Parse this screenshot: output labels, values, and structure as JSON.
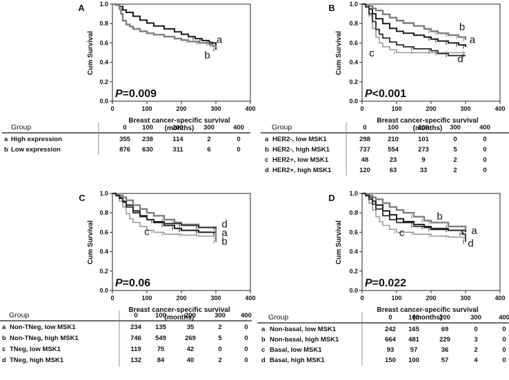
{
  "colors": {
    "a": "#1a1a1a",
    "b": "#7d7d7d",
    "c": "#9a9a9a",
    "d": "#2b2b2b",
    "axis": "#222222"
  },
  "chart_data": [
    {
      "panel": "A",
      "type": "line",
      "ylabel": "Cum Survival",
      "xlabel_line1": "Breast cancer-specific survival",
      "xlabel_line2": "(months)",
      "xlim": [
        0,
        400
      ],
      "ylim": [
        0.0,
        1.0
      ],
      "xticks": [
        "0",
        "100",
        "200",
        "300",
        "400"
      ],
      "yticks": [
        "0.0",
        "0.2",
        "0.4",
        "0.6",
        "0.8",
        "1.0"
      ],
      "pvalue_prefix": "P",
      "pvalue_rest": "=0.009",
      "series": [
        {
          "key": "a",
          "name": "High expression",
          "x": [
            0,
            10,
            20,
            30,
            40,
            60,
            80,
            100,
            120,
            150,
            180,
            200,
            220,
            240,
            260,
            280,
            290,
            300
          ],
          "y": [
            1.0,
            0.995,
            0.975,
            0.94,
            0.915,
            0.875,
            0.835,
            0.805,
            0.775,
            0.745,
            0.715,
            0.69,
            0.665,
            0.645,
            0.625,
            0.605,
            0.6,
            0.53
          ]
        },
        {
          "key": "b",
          "name": "Low expression",
          "x": [
            0,
            10,
            20,
            25,
            30,
            40,
            50,
            60,
            80,
            100,
            120,
            150,
            180,
            200,
            220,
            250,
            280,
            290,
            300
          ],
          "y": [
            1.0,
            0.99,
            0.95,
            0.9,
            0.83,
            0.79,
            0.77,
            0.745,
            0.72,
            0.7,
            0.685,
            0.665,
            0.645,
            0.63,
            0.615,
            0.6,
            0.585,
            0.57,
            0.55
          ]
        }
      ],
      "curve_labels": [
        {
          "key": "a",
          "text": "a",
          "x": 310,
          "y": 0.6
        },
        {
          "key": "b",
          "text": "b",
          "x": 275,
          "y": 0.44
        }
      ],
      "table": {
        "header": [
          "Group",
          "0",
          "100",
          "200",
          "300",
          "400"
        ],
        "rows": [
          {
            "key": "a",
            "label": "High expression",
            "values": [
              "355",
              "238",
              "114",
              "2",
              "0"
            ]
          },
          {
            "key": "b",
            "label": "Low expression",
            "values": [
              "876",
              "630",
              "311",
              "6",
              "0"
            ]
          }
        ]
      }
    },
    {
      "panel": "B",
      "type": "line",
      "ylabel": "Cum Survival",
      "xlabel_line1": "Breast cancer-specific survival",
      "xlabel_line2": "(months)",
      "xlim": [
        0,
        400
      ],
      "ylim": [
        0.0,
        1.0
      ],
      "xticks": [
        "0",
        "100",
        "200",
        "300",
        "400"
      ],
      "yticks": [
        "0.0",
        "0.2",
        "0.4",
        "0.6",
        "0.8",
        "1.0"
      ],
      "pvalue_prefix": "P",
      "pvalue_rest": "<0.001",
      "series": [
        {
          "key": "a",
          "name": "HER2-, low MSK1",
          "x": [
            0,
            10,
            20,
            30,
            40,
            60,
            80,
            100,
            120,
            150,
            180,
            200,
            220,
            250,
            280,
            300
          ],
          "y": [
            1.0,
            0.99,
            0.95,
            0.9,
            0.85,
            0.8,
            0.75,
            0.72,
            0.7,
            0.68,
            0.66,
            0.64,
            0.62,
            0.6,
            0.58,
            0.56
          ]
        },
        {
          "key": "b",
          "name": "HER2-, high MSK1",
          "x": [
            0,
            10,
            20,
            30,
            40,
            60,
            80,
            100,
            120,
            150,
            180,
            200,
            220,
            250,
            280,
            300
          ],
          "y": [
            1.0,
            0.995,
            0.98,
            0.955,
            0.935,
            0.895,
            0.86,
            0.83,
            0.805,
            0.775,
            0.745,
            0.72,
            0.7,
            0.68,
            0.66,
            0.63
          ]
        },
        {
          "key": "c",
          "name": "HER2+, low MSK1",
          "x": [
            0,
            10,
            20,
            30,
            40,
            50,
            60,
            80,
            100,
            150,
            200,
            250,
            300
          ],
          "y": [
            1.0,
            0.97,
            0.88,
            0.75,
            0.66,
            0.6,
            0.56,
            0.53,
            0.5,
            0.5,
            0.5,
            0.5,
            0.5
          ]
        },
        {
          "key": "d",
          "name": "HER2+, high MSK1",
          "x": [
            0,
            10,
            20,
            30,
            40,
            50,
            60,
            80,
            100,
            120,
            150,
            200,
            220,
            250,
            300
          ],
          "y": [
            1.0,
            0.97,
            0.9,
            0.82,
            0.74,
            0.69,
            0.65,
            0.61,
            0.58,
            0.56,
            0.54,
            0.52,
            0.49,
            0.47,
            0.47
          ]
        }
      ],
      "curve_labels": [
        {
          "key": "b",
          "text": "b",
          "x": 290,
          "y": 0.73
        },
        {
          "key": "a",
          "text": "a",
          "x": 320,
          "y": 0.6
        },
        {
          "key": "c",
          "text": "c",
          "x": 28,
          "y": 0.46
        },
        {
          "key": "d",
          "text": "d",
          "x": 285,
          "y": 0.4
        }
      ],
      "table": {
        "header": [
          "Group",
          "0",
          "100",
          "200",
          "300",
          "400"
        ],
        "rows": [
          {
            "key": "a",
            "label": "HER2-, low MSK1",
            "values": [
              "298",
              "210",
              "101",
              "0",
              "0"
            ]
          },
          {
            "key": "b",
            "label": "HER2-, high MSK1",
            "values": [
              "737",
              "554",
              "273",
              "5",
              "0"
            ]
          },
          {
            "key": "c",
            "label": "HER2+, low MSK1",
            "values": [
              "48",
              "23",
              "9",
              "2",
              "0"
            ]
          },
          {
            "key": "d",
            "label": "HER2+, high MSK1",
            "values": [
              "120",
              "63",
              "33",
              "2",
              "0"
            ]
          }
        ]
      }
    },
    {
      "panel": "C",
      "type": "line",
      "ylabel": "Cum Survival",
      "xlabel_line1": "Breast cancer-specific survival",
      "xlabel_line2": "(months)",
      "xlim": [
        0,
        400
      ],
      "ylim": [
        0.0,
        1.0
      ],
      "xticks": [
        "0",
        "100",
        "200",
        "300",
        "400"
      ],
      "yticks": [
        "0.0",
        "0.2",
        "0.4",
        "0.6",
        "0.8",
        "1.0"
      ],
      "pvalue_prefix": "P",
      "pvalue_rest": "=0.06",
      "series": [
        {
          "key": "a",
          "name": "Non-TNeg, low MSK1",
          "x": [
            0,
            10,
            20,
            30,
            40,
            60,
            80,
            100,
            120,
            150,
            180,
            200,
            250,
            300
          ],
          "y": [
            1.0,
            0.99,
            0.96,
            0.92,
            0.88,
            0.82,
            0.77,
            0.73,
            0.7,
            0.67,
            0.64,
            0.62,
            0.6,
            0.58
          ]
        },
        {
          "key": "b",
          "name": "Non-TNeg, high MSK1",
          "x": [
            0,
            10,
            20,
            30,
            40,
            60,
            80,
            100,
            120,
            150,
            180,
            200,
            250,
            300
          ],
          "y": [
            1.0,
            0.995,
            0.98,
            0.96,
            0.93,
            0.88,
            0.84,
            0.8,
            0.77,
            0.73,
            0.7,
            0.68,
            0.65,
            0.5
          ]
        },
        {
          "key": "c",
          "name": "TNeg, low MSK1",
          "x": [
            0,
            10,
            20,
            30,
            40,
            50,
            60,
            80,
            100,
            120,
            150,
            200,
            250,
            300
          ],
          "y": [
            1.0,
            0.97,
            0.92,
            0.86,
            0.79,
            0.74,
            0.7,
            0.66,
            0.62,
            0.6,
            0.58,
            0.57,
            0.56,
            0.55
          ]
        },
        {
          "key": "d",
          "name": "TNeg, high MSK1",
          "x": [
            0,
            10,
            20,
            30,
            40,
            60,
            80,
            100,
            120,
            150,
            200,
            250,
            300
          ],
          "y": [
            1.0,
            0.98,
            0.95,
            0.91,
            0.86,
            0.8,
            0.76,
            0.73,
            0.71,
            0.69,
            0.67,
            0.65,
            0.64
          ]
        }
      ],
      "curve_labels": [
        {
          "key": "d",
          "text": "d",
          "x": 325,
          "y": 0.65
        },
        {
          "key": "a",
          "text": "a",
          "x": 325,
          "y": 0.56
        },
        {
          "key": "b",
          "text": "b",
          "x": 325,
          "y": 0.47
        },
        {
          "key": "c",
          "text": "c",
          "x": 100,
          "y": 0.57
        }
      ],
      "table": {
        "header": [
          "Group",
          "0",
          "100",
          "200",
          "300",
          "400"
        ],
        "rows": [
          {
            "key": "a",
            "label": "Non-TNeg, low MSK1",
            "values": [
              "234",
              "135",
              "35",
              "2",
              "0"
            ]
          },
          {
            "key": "b",
            "label": "Non-TNeg, high MSK1",
            "values": [
              "746",
              "549",
              "269",
              "5",
              "0"
            ]
          },
          {
            "key": "c",
            "label": "TNeg, low MSK1",
            "values": [
              "119",
              "75",
              "42",
              "0",
              "0"
            ]
          },
          {
            "key": "d",
            "label": "TNeg, high MSK1",
            "values": [
              "132",
              "84",
              "40",
              "2",
              "0"
            ]
          }
        ]
      }
    },
    {
      "panel": "D",
      "type": "line",
      "ylabel": "Cum Survival",
      "xlabel_line1": "Breast cancer-specific survival",
      "xlabel_line2": "(months)",
      "xlim": [
        0,
        400
      ],
      "ylim": [
        0.0,
        1.0
      ],
      "xticks": [
        "0",
        "100",
        "200",
        "300",
        "400"
      ],
      "yticks": [
        "0.0",
        "0.2",
        "0.4",
        "0.6",
        "0.8",
        "1.0"
      ],
      "pvalue_prefix": "P",
      "pvalue_rest": "=0.022",
      "series": [
        {
          "key": "a",
          "name": "Non-basal, low MSK1",
          "x": [
            0,
            10,
            20,
            30,
            40,
            60,
            80,
            100,
            120,
            150,
            180,
            200,
            250,
            300
          ],
          "y": [
            1.0,
            0.99,
            0.96,
            0.92,
            0.88,
            0.82,
            0.78,
            0.74,
            0.71,
            0.68,
            0.65,
            0.63,
            0.62,
            0.6
          ]
        },
        {
          "key": "b",
          "name": "Non-basal, high MSK1",
          "x": [
            0,
            10,
            20,
            30,
            40,
            60,
            80,
            100,
            120,
            150,
            180,
            200,
            250,
            300
          ],
          "y": [
            1.0,
            0.995,
            0.98,
            0.96,
            0.94,
            0.9,
            0.86,
            0.83,
            0.8,
            0.76,
            0.72,
            0.7,
            0.66,
            0.62
          ]
        },
        {
          "key": "c",
          "name": "Basal, low MSK1",
          "x": [
            0,
            10,
            20,
            30,
            40,
            50,
            60,
            80,
            100,
            150,
            200,
            250,
            300
          ],
          "y": [
            1.0,
            0.97,
            0.9,
            0.83,
            0.76,
            0.71,
            0.67,
            0.63,
            0.6,
            0.58,
            0.56,
            0.55,
            0.53
          ]
        },
        {
          "key": "d",
          "name": "Basal, high MSK1",
          "x": [
            0,
            10,
            20,
            30,
            40,
            60,
            80,
            100,
            150,
            200,
            250,
            290,
            300
          ],
          "y": [
            1.0,
            0.98,
            0.94,
            0.89,
            0.84,
            0.77,
            0.73,
            0.7,
            0.66,
            0.64,
            0.62,
            0.58,
            0.5
          ]
        }
      ],
      "curve_labels": [
        {
          "key": "b",
          "text": "b",
          "x": 225,
          "y": 0.73
        },
        {
          "key": "a",
          "text": "a",
          "x": 325,
          "y": 0.58
        },
        {
          "key": "c",
          "text": "c",
          "x": 115,
          "y": 0.56
        },
        {
          "key": "d",
          "text": "d",
          "x": 315,
          "y": 0.45
        }
      ],
      "table": {
        "header": [
          "Group",
          "0",
          "100",
          "200",
          "300",
          "400"
        ],
        "rows": [
          {
            "key": "a",
            "label": "Non-basal, low MSK1",
            "values": [
              "242",
              "165",
              "69",
              "0",
              "0"
            ]
          },
          {
            "key": "b",
            "label": "Non-basal, high MSK1",
            "values": [
              "664",
              "481",
              "229",
              "3",
              "0"
            ]
          },
          {
            "key": "c",
            "label": "Basal, low MSK1",
            "values": [
              "93",
              "57",
              "36",
              "2",
              "0"
            ]
          },
          {
            "key": "d",
            "label": "Basal, high MSK1",
            "values": [
              "150",
              "100",
              "57",
              "4",
              "0"
            ]
          }
        ]
      }
    }
  ]
}
